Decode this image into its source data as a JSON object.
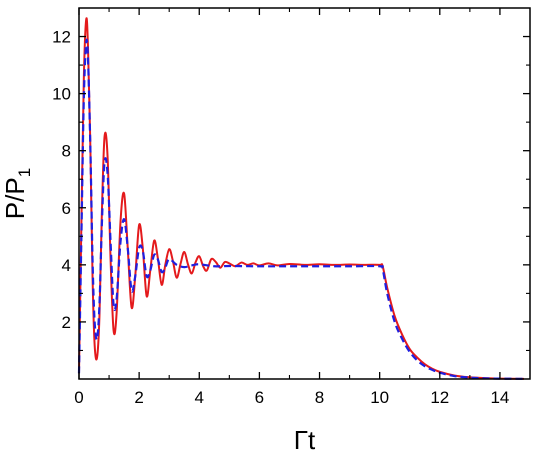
{
  "chart_data": {
    "type": "line",
    "title": "",
    "xlabel": "Γt",
    "ylabel_main": "P/P",
    "ylabel_sub": "1",
    "xlim": [
      0,
      15
    ],
    "ylim": [
      0,
      13
    ],
    "x_ticks": [
      0,
      2,
      4,
      6,
      8,
      10,
      12,
      14
    ],
    "y_ticks": [
      2,
      4,
      6,
      8,
      10,
      12
    ],
    "grid": false,
    "legend": "none",
    "series": [
      {
        "style": "solid",
        "color": "#e41a1c",
        "x": [
          0,
          0.08,
          0.16,
          0.24,
          0.3,
          0.38,
          0.45,
          0.52,
          0.6,
          0.68,
          0.76,
          0.85,
          0.95,
          1.05,
          1.15,
          1.25,
          1.38,
          1.5,
          1.62,
          1.75,
          1.87,
          2.0,
          2.12,
          2.25,
          2.37,
          2.5,
          2.62,
          2.75,
          2.87,
          3.0,
          3.12,
          3.25,
          3.38,
          3.5,
          3.63,
          3.75,
          3.88,
          4.0,
          4.13,
          4.25,
          4.4,
          4.55,
          4.7,
          4.85,
          5.0,
          5.2,
          5.4,
          5.6,
          5.8,
          6.0,
          6.3,
          6.6,
          7.0,
          7.5,
          8.0,
          8.5,
          9.0,
          9.5,
          10.0,
          10.1,
          10.25,
          10.5,
          10.75,
          11.0,
          11.25,
          11.5,
          11.75,
          12.0,
          12.5,
          13.0,
          13.5,
          14.0,
          14.8
        ],
        "y": [
          0.2,
          5.5,
          10.5,
          12.6,
          11.6,
          8.0,
          3.6,
          1.2,
          0.75,
          2.2,
          5.8,
          8.5,
          7.8,
          4.2,
          1.7,
          2.3,
          5.5,
          6.5,
          4.6,
          2.5,
          3.6,
          5.4,
          4.6,
          2.9,
          3.8,
          4.85,
          4.25,
          3.3,
          4.0,
          4.55,
          4.15,
          3.55,
          4.05,
          4.45,
          4.0,
          3.7,
          4.1,
          4.3,
          3.95,
          3.8,
          4.2,
          4.1,
          3.9,
          4.1,
          4.05,
          3.95,
          4.08,
          4.0,
          4.05,
          3.98,
          4.05,
          3.98,
          4.03,
          4.0,
          4.02,
          4.0,
          4.01,
          4.0,
          4.0,
          3.95,
          3.2,
          2.2,
          1.55,
          1.05,
          0.75,
          0.52,
          0.36,
          0.25,
          0.12,
          0.06,
          0.03,
          0.015,
          0.005
        ]
      },
      {
        "style": "dashed",
        "color": "#1f1fe0",
        "x": [
          0,
          0.08,
          0.16,
          0.24,
          0.3,
          0.38,
          0.45,
          0.52,
          0.6,
          0.68,
          0.76,
          0.85,
          0.95,
          1.05,
          1.15,
          1.25,
          1.38,
          1.5,
          1.62,
          1.75,
          1.87,
          2.0,
          2.12,
          2.25,
          2.37,
          2.5,
          2.62,
          2.75,
          2.87,
          3.0,
          3.25,
          3.5,
          3.75,
          4.0,
          4.5,
          5.0,
          6.0,
          7.0,
          8.0,
          9.0,
          10.0,
          10.1,
          10.25,
          10.5,
          10.75,
          11.0,
          11.25,
          11.5,
          11.75,
          12.0,
          12.5,
          13.0,
          13.5,
          14.0,
          14.8
        ],
        "y": [
          0.2,
          5.0,
          9.8,
          11.8,
          11.2,
          8.0,
          4.2,
          2.0,
          1.4,
          2.6,
          5.4,
          7.6,
          7.2,
          4.8,
          2.6,
          2.8,
          4.8,
          5.6,
          4.6,
          3.1,
          3.6,
          4.6,
          4.5,
          3.6,
          3.8,
          4.35,
          4.2,
          3.75,
          3.9,
          4.2,
          4.0,
          3.92,
          3.98,
          4.02,
          3.95,
          3.96,
          3.95,
          3.95,
          3.95,
          3.95,
          3.95,
          3.85,
          3.0,
          2.0,
          1.4,
          0.95,
          0.65,
          0.45,
          0.32,
          0.22,
          0.1,
          0.05,
          0.025,
          0.012,
          0.004
        ]
      }
    ]
  }
}
